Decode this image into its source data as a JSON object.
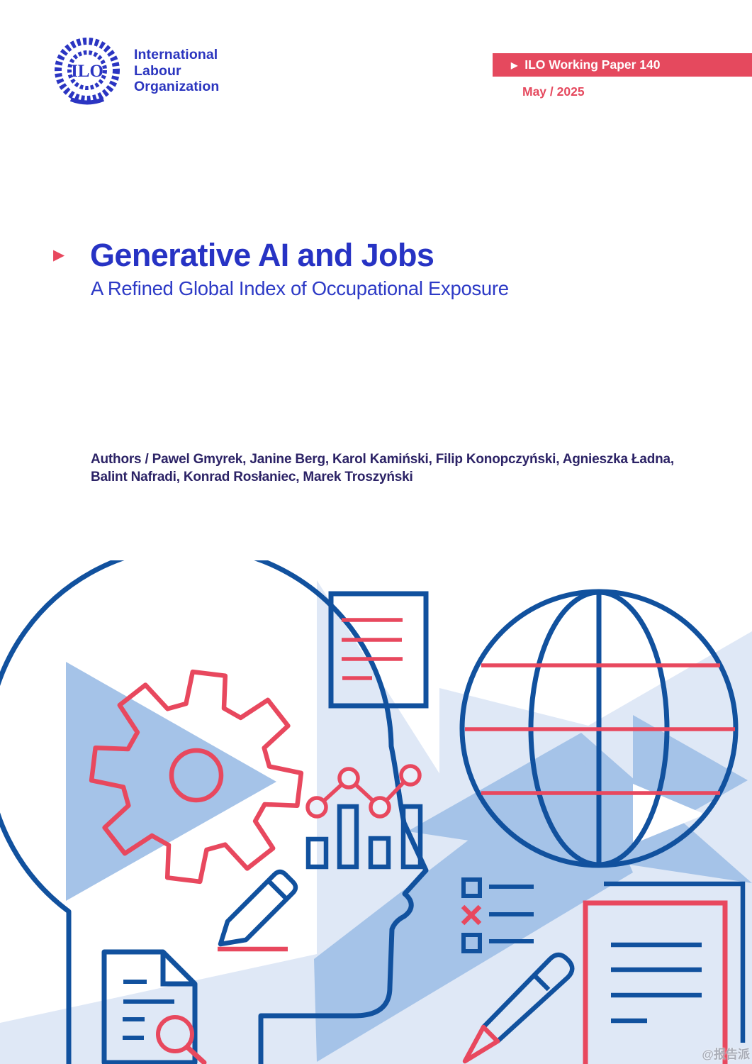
{
  "logo": {
    "emblem_text": "ILO",
    "org_lines": [
      "International",
      "Labour",
      "Organization"
    ]
  },
  "banner": {
    "arrow": "▶",
    "label": "ILO Working Paper 140"
  },
  "issue_date": "May / 2025",
  "title_block": {
    "bullet": "▶",
    "title": "Generative AI and Jobs",
    "subtitle": "A Refined Global Index of Occupational Exposure"
  },
  "authors": {
    "lines": [
      "Authors / Pawel Gmyrek, Janine Berg, Karol Kamiński, Filip Konopczyński, Agnieszka Ładna,",
      "Balint Nafradi, Konrad Rosłaniec, Marek Troszyński"
    ]
  },
  "watermark": "@报告派",
  "colors": {
    "brand_blue": "#2b35c2",
    "ink_blue": "#11519e",
    "accent_red": "#e8485e",
    "triangle_medium": "#a5c3e8",
    "triangle_pale": "#dfe8f6",
    "authors_navy": "#2c2366",
    "banner_red": "#e5495e"
  },
  "illustration": {
    "icons": [
      "human-head-profile-icon",
      "gear-icon",
      "document-icon",
      "globe-icon",
      "line-chart-icon",
      "bar-chart-icon",
      "checklist-icon",
      "pencil-icon",
      "document-search-icon",
      "magnifier-icon",
      "pencil-bottom-icon",
      "document-text-icon"
    ]
  }
}
